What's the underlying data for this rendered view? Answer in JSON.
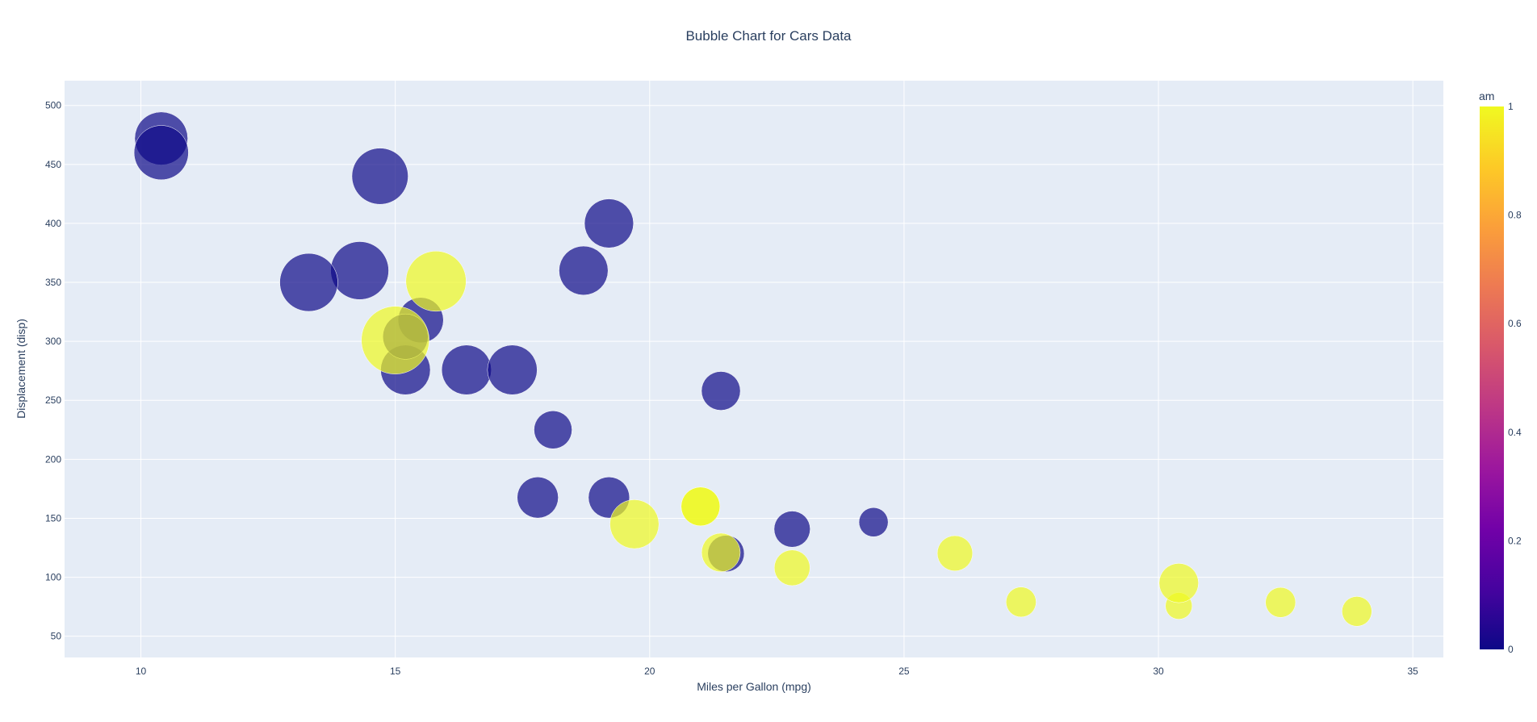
{
  "chart_data": {
    "type": "scatter",
    "title": "Bubble Chart for Cars Data",
    "xlabel": "Miles per Gallon (mpg)",
    "ylabel": "Displacement (disp)",
    "xlim": [
      8.5,
      35.6
    ],
    "ylim": [
      32,
      521
    ],
    "x_ticks": [
      10,
      15,
      20,
      25,
      30,
      35
    ],
    "y_ticks": [
      50,
      100,
      150,
      200,
      250,
      300,
      350,
      400,
      450,
      500
    ],
    "grid": true,
    "size_encodes": "hp",
    "color_encodes": "am",
    "colorbar": {
      "title": "am",
      "range": [
        0,
        1
      ],
      "ticks": [
        "0",
        "0.2",
        "0.4",
        "0.6",
        "0.8",
        "1"
      ],
      "colors": [
        "#0d0887",
        "#46039f",
        "#7201a8",
        "#9c179e",
        "#bd3786",
        "#d8576b",
        "#ed7953",
        "#fb9f3a",
        "#fdca26",
        "#f0f921"
      ]
    },
    "background_color": "#e5ecf6",
    "points": [
      {
        "x": 21.0,
        "y": 160.0,
        "size": 110,
        "am": 1
      },
      {
        "x": 21.0,
        "y": 160.0,
        "size": 110,
        "am": 1
      },
      {
        "x": 22.8,
        "y": 108.0,
        "size": 93,
        "am": 1
      },
      {
        "x": 21.4,
        "y": 258.0,
        "size": 110,
        "am": 0
      },
      {
        "x": 18.7,
        "y": 360.0,
        "size": 175,
        "am": 0
      },
      {
        "x": 18.1,
        "y": 225.0,
        "size": 105,
        "am": 0
      },
      {
        "x": 14.3,
        "y": 360.0,
        "size": 245,
        "am": 0
      },
      {
        "x": 24.4,
        "y": 146.7,
        "size": 62,
        "am": 0
      },
      {
        "x": 22.8,
        "y": 140.8,
        "size": 95,
        "am": 0
      },
      {
        "x": 19.2,
        "y": 167.6,
        "size": 123,
        "am": 0
      },
      {
        "x": 17.8,
        "y": 167.6,
        "size": 123,
        "am": 0
      },
      {
        "x": 16.4,
        "y": 275.8,
        "size": 180,
        "am": 0
      },
      {
        "x": 17.3,
        "y": 275.8,
        "size": 180,
        "am": 0
      },
      {
        "x": 15.2,
        "y": 275.8,
        "size": 180,
        "am": 0
      },
      {
        "x": 10.4,
        "y": 472.0,
        "size": 205,
        "am": 0
      },
      {
        "x": 10.4,
        "y": 460.0,
        "size": 215,
        "am": 0
      },
      {
        "x": 14.7,
        "y": 440.0,
        "size": 230,
        "am": 0
      },
      {
        "x": 32.4,
        "y": 78.7,
        "size": 66,
        "am": 1
      },
      {
        "x": 30.4,
        "y": 75.7,
        "size": 52,
        "am": 1
      },
      {
        "x": 33.9,
        "y": 71.1,
        "size": 65,
        "am": 1
      },
      {
        "x": 21.5,
        "y": 120.1,
        "size": 97,
        "am": 0
      },
      {
        "x": 15.5,
        "y": 318.0,
        "size": 150,
        "am": 0
      },
      {
        "x": 15.2,
        "y": 304.0,
        "size": 150,
        "am": 0
      },
      {
        "x": 13.3,
        "y": 350.0,
        "size": 245,
        "am": 0
      },
      {
        "x": 19.2,
        "y": 400.0,
        "size": 175,
        "am": 0
      },
      {
        "x": 27.3,
        "y": 79.0,
        "size": 66,
        "am": 1
      },
      {
        "x": 26.0,
        "y": 120.3,
        "size": 91,
        "am": 1
      },
      {
        "x": 30.4,
        "y": 95.1,
        "size": 113,
        "am": 1
      },
      {
        "x": 15.8,
        "y": 351.0,
        "size": 264,
        "am": 1
      },
      {
        "x": 19.7,
        "y": 145.0,
        "size": 175,
        "am": 1
      },
      {
        "x": 15.0,
        "y": 301.0,
        "size": 335,
        "am": 1
      },
      {
        "x": 21.4,
        "y": 121.0,
        "size": 109,
        "am": 1
      }
    ]
  }
}
